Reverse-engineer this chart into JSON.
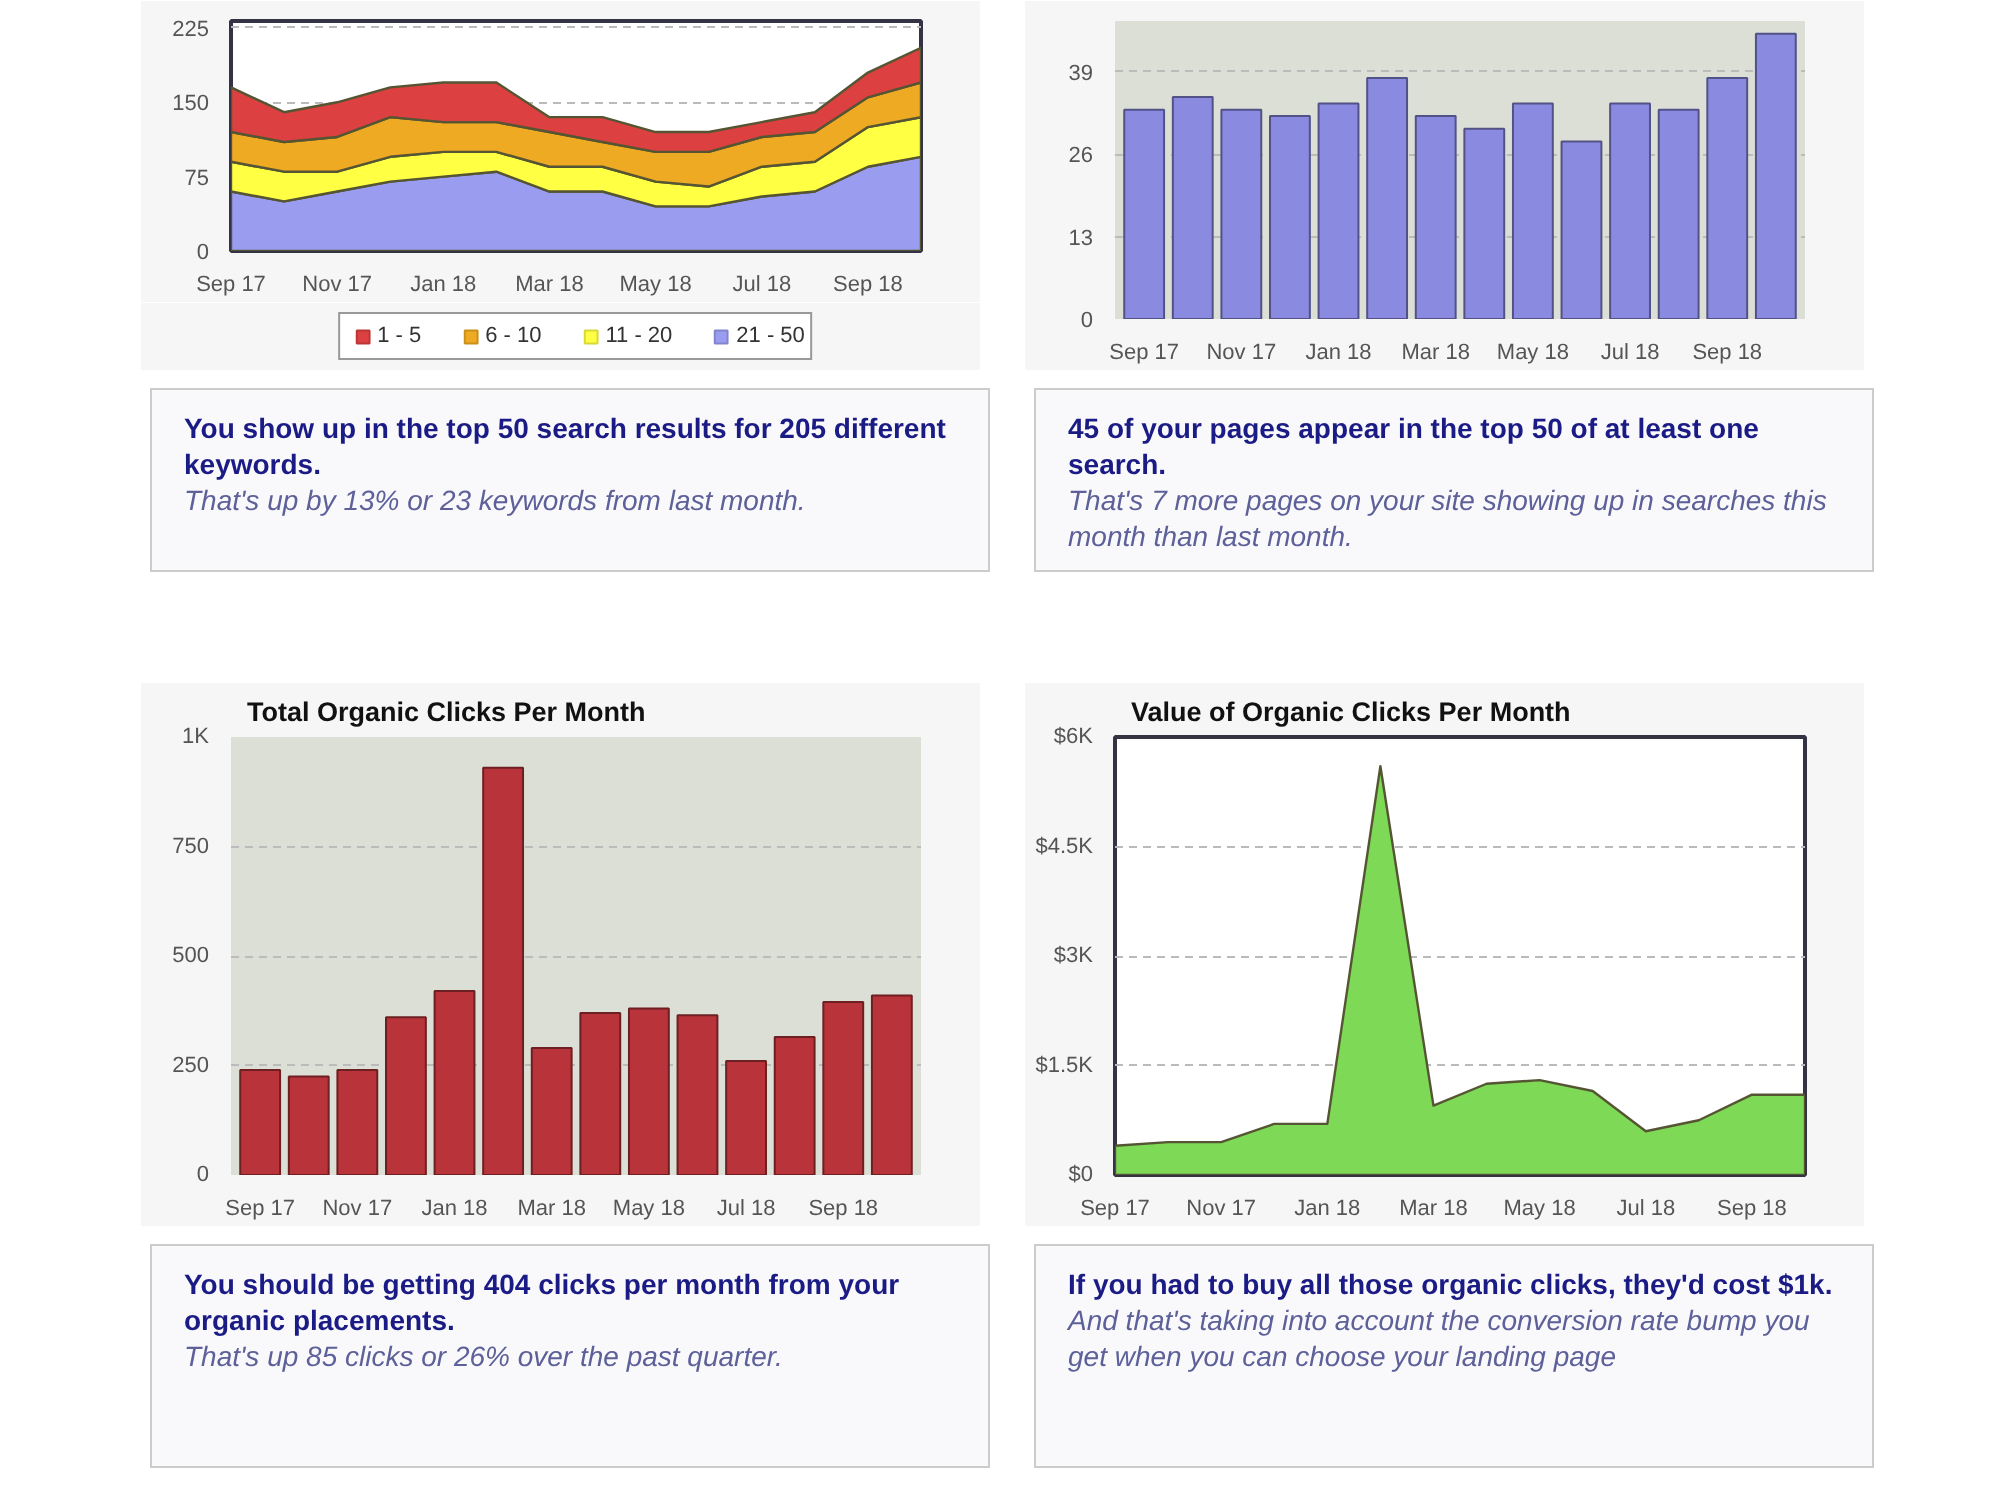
{
  "chart_data": [
    {
      "type": "area",
      "stacked": true,
      "categories": [
        "Sep 17",
        null,
        "Nov 17",
        null,
        "Jan 18",
        null,
        "Mar 18",
        null,
        "May 18",
        null,
        "Jul 18",
        null,
        "Sep 18",
        null
      ],
      "series": [
        {
          "name": "21 - 50",
          "color": "#9a9cf0",
          "values": [
            60,
            50,
            60,
            70,
            75,
            80,
            60,
            60,
            45,
            45,
            55,
            60,
            85,
            95
          ]
        },
        {
          "name": "11 - 20",
          "color": "#ffff44",
          "values": [
            30,
            30,
            20,
            25,
            25,
            20,
            25,
            25,
            25,
            20,
            30,
            30,
            40,
            40
          ]
        },
        {
          "name": "6 - 10",
          "color": "#eeaa22",
          "values": [
            30,
            30,
            35,
            40,
            30,
            30,
            35,
            25,
            30,
            35,
            30,
            30,
            30,
            35
          ]
        },
        {
          "name": "1 - 5",
          "color": "#dd4040",
          "values": [
            45,
            30,
            35,
            30,
            40,
            40,
            15,
            25,
            20,
            20,
            15,
            20,
            25,
            35
          ]
        }
      ],
      "ylim": [
        0,
        232
      ],
      "yticks": [
        0,
        75,
        150,
        225
      ],
      "grid": "y",
      "legend": "bottom",
      "annotations": [
        "You show up in the top 50 search results for 205 different keywords.",
        "That's up by 13% or 23 keywords from last month."
      ]
    },
    {
      "type": "bar",
      "categories": [
        "Sep 17",
        null,
        "Nov 17",
        null,
        "Jan 18",
        null,
        "Mar 18",
        null,
        "May 18",
        null,
        "Jul 18",
        null,
        "Sep 18",
        null
      ],
      "values": [
        33,
        35,
        33,
        32,
        34,
        38,
        32,
        30,
        34,
        28,
        34,
        33,
        38,
        45
      ],
      "color": "#8a8ae0",
      "ylim": [
        0,
        47
      ],
      "yticks": [
        0,
        13,
        26,
        39
      ],
      "grid": "y",
      "annotations": [
        "45 of your pages appear in the top 50 of at least one search.",
        "That's 7 more pages on your site showing up in searches this month than last month."
      ]
    },
    {
      "type": "bar",
      "title": "Total Organic Clicks Per Month",
      "categories": [
        "Sep 17",
        null,
        "Nov 17",
        null,
        "Jan 18",
        null,
        "Mar 18",
        null,
        "May 18",
        null,
        "Jul 18",
        null,
        "Sep 18",
        null
      ],
      "values": [
        240,
        225,
        240,
        360,
        420,
        930,
        290,
        370,
        380,
        365,
        260,
        315,
        395,
        410
      ],
      "color": "#b8343a",
      "ylim": [
        0,
        1000
      ],
      "yticks": [
        0,
        250,
        500,
        750,
        {
          "value": 1000,
          "label": "1K"
        }
      ],
      "grid": "y",
      "annotations": [
        "You should be getting 404 clicks per month from your organic placements.",
        "That's up 85 clicks or 26% over the past quarter."
      ]
    },
    {
      "type": "area",
      "title": "Value of Organic Clicks Per Month",
      "categories": [
        "Sep 17",
        null,
        "Nov 17",
        null,
        "Jan 18",
        null,
        "Mar 18",
        null,
        "May 18",
        null,
        "Jul 18",
        null,
        "Sep 18",
        null
      ],
      "values": [
        400,
        450,
        450,
        700,
        700,
        5600,
        950,
        1250,
        1300,
        1150,
        600,
        750,
        1100,
        1100
      ],
      "color": "#7ed957",
      "ylim": [
        0,
        6000
      ],
      "yticks": [
        {
          "value": 0,
          "label": "$0"
        },
        {
          "value": 1500,
          "label": "$1.5K"
        },
        {
          "value": 3000,
          "label": "$3K"
        },
        {
          "value": 4500,
          "label": "$4.5K"
        },
        {
          "value": 6000,
          "label": "$6K"
        }
      ],
      "grid": "y",
      "annotations": [
        "If you had to buy all those organic clicks, they'd cost $1k.",
        "And that's taking into account the conversion rate bump you get when you can choose your landing page"
      ]
    }
  ]
}
